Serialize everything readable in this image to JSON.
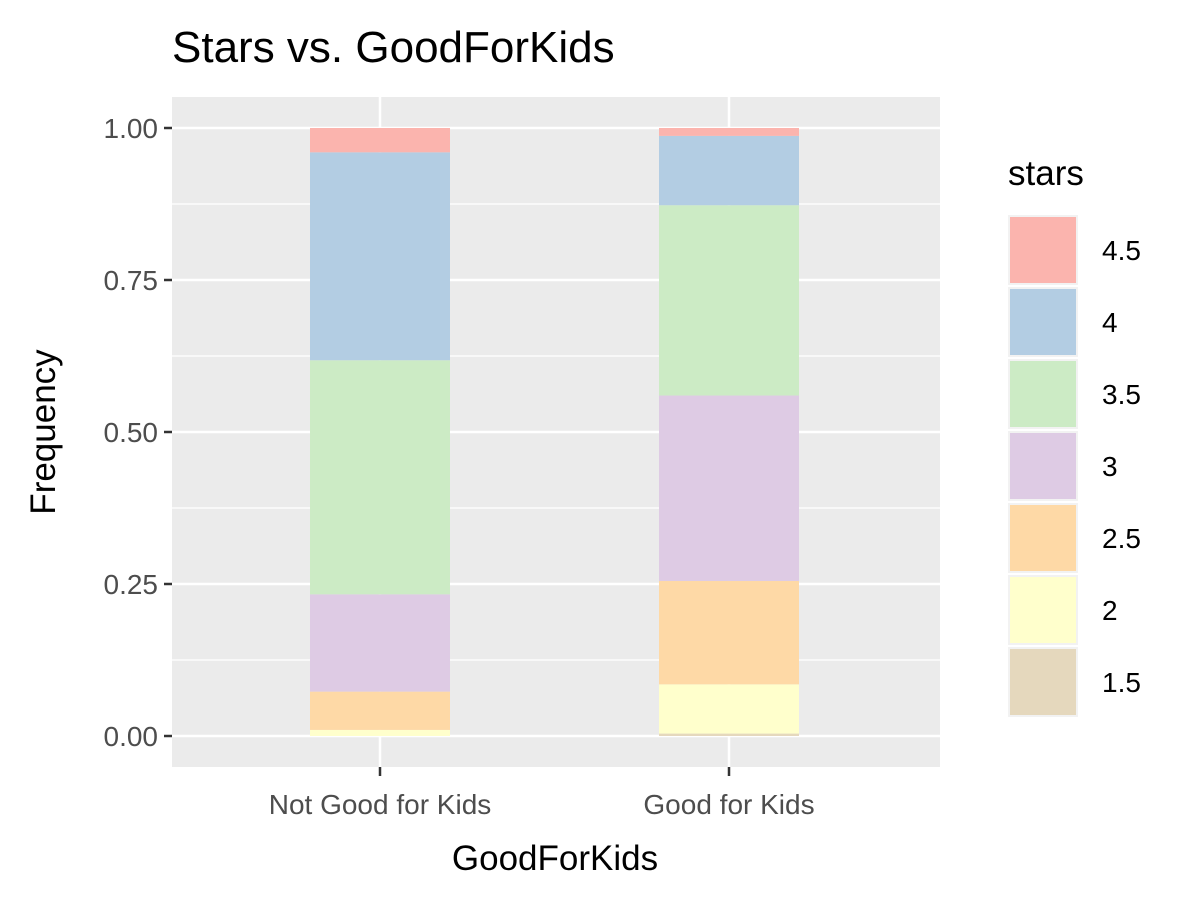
{
  "chart_data": {
    "type": "bar",
    "stacked": true,
    "title": "Stars vs. GoodForKids",
    "xlabel": "GoodForKids",
    "ylabel": "Frequency",
    "ylim": [
      0,
      1
    ],
    "yticks": [
      "0.00",
      "0.25",
      "0.50",
      "0.75",
      "1.00"
    ],
    "categories": [
      "Not Good for Kids",
      "Good for Kids"
    ],
    "legend": {
      "title": "stars",
      "position": "right"
    },
    "grid": true,
    "series": [
      {
        "name": "1.5",
        "color": "#E5D8BD",
        "values": [
          0.0,
          0.004
        ]
      },
      {
        "name": "2",
        "color": "#FFFFCC",
        "values": [
          0.01,
          0.081
        ]
      },
      {
        "name": "2.5",
        "color": "#FED9A6",
        "values": [
          0.063,
          0.17
        ]
      },
      {
        "name": "3",
        "color": "#DECBE4",
        "values": [
          0.16,
          0.305
        ]
      },
      {
        "name": "3.5",
        "color": "#CCEBC5",
        "values": [
          0.385,
          0.313
        ]
      },
      {
        "name": "4",
        "color": "#B3CDE3",
        "values": [
          0.342,
          0.114
        ]
      },
      {
        "name": "4.5",
        "color": "#FBB4AE",
        "values": [
          0.04,
          0.013
        ]
      }
    ]
  }
}
